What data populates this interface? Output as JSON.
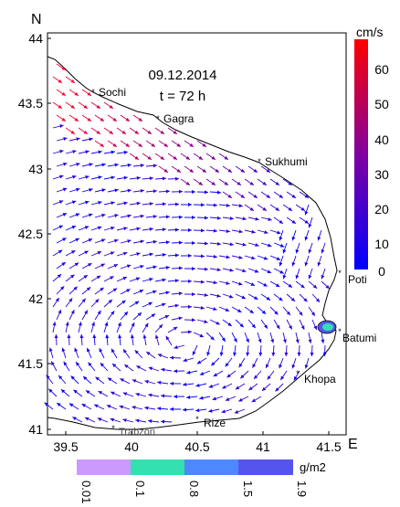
{
  "map": {
    "date": "09.12.2014",
    "time": "t = 72 h",
    "north_label": "N",
    "east_label": "E",
    "lat_ticks": [
      "44",
      "43.5",
      "43",
      "42.5",
      "42",
      "41.5",
      "41"
    ],
    "lon_ticks": [
      "39.5",
      "40",
      "40.5",
      "41",
      "41.5"
    ],
    "cities": [
      {
        "name": "Sochi",
        "lat": 43.58,
        "lon": 39.72
      },
      {
        "name": "Gagra",
        "lat": 43.33,
        "lon": 40.2
      },
      {
        "name": "Sukhumi",
        "lat": 43.0,
        "lon": 40.98
      },
      {
        "name": "Poti",
        "lat": 42.15,
        "lon": 41.62
      },
      {
        "name": "Batumi",
        "lat": 41.65,
        "lon": 41.6
      },
      {
        "name": "Khopa",
        "lat": 41.42,
        "lon": 41.4
      },
      {
        "name": "Rize",
        "lat": 41.02,
        "lon": 40.53
      },
      {
        "name": "Trabzon",
        "lat": 41.0,
        "lon": 39.73
      }
    ],
    "speed_scale": {
      "unit": "cm/s",
      "ticks": [
        "60",
        "50",
        "40",
        "30",
        "20",
        "10",
        "0"
      ],
      "colors": {
        "high": "#ff0000",
        "low": "#0000ff"
      }
    },
    "concentration_scale": {
      "unit": "g/m2",
      "ticks": [
        "0.01",
        "0.1",
        "0.8",
        "1.5",
        "1.9"
      ],
      "colors": [
        "#cc99ff",
        "#33e0b0",
        "#4d88ff",
        "#5555ee"
      ]
    }
  }
}
